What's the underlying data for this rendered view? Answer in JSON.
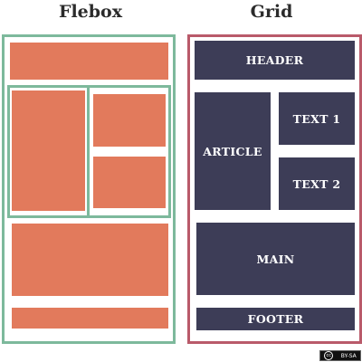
{
  "flexbox": {
    "title": "Flebox",
    "border_color": "#7db99c",
    "block_color": "#e27a5c"
  },
  "grid": {
    "title": "Grid",
    "border_color": "#b95a6a",
    "block_color": "#3d3d57",
    "header": "HEADER",
    "article": "ARTICLE",
    "text1": "TEXT 1",
    "text2": "TEXT 2",
    "main": "MAIN",
    "footer": "FOOTER"
  },
  "license_badge": {
    "cc_symbol": "cc",
    "label": "BY-SA"
  }
}
